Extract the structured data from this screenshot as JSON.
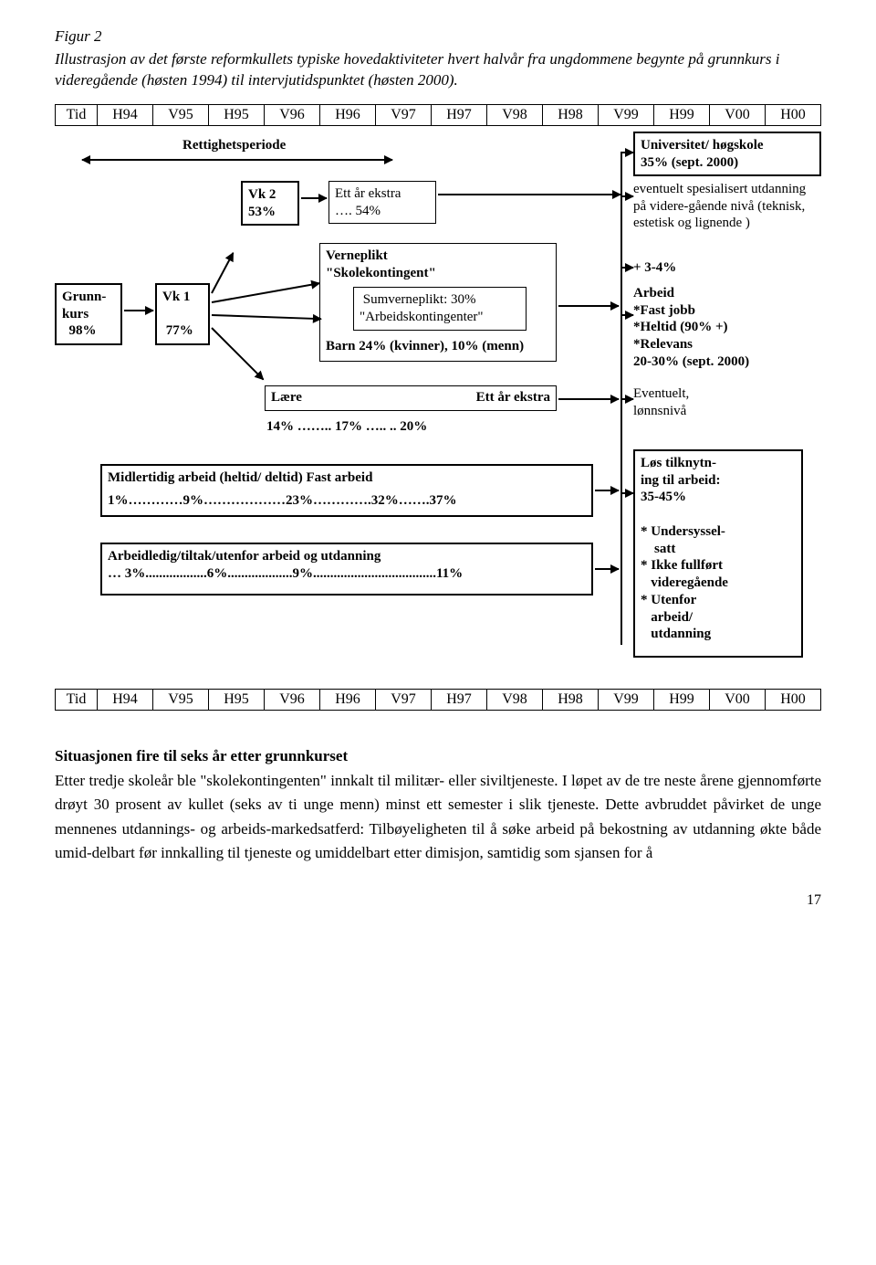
{
  "figure": {
    "title": "Figur 2",
    "description": "Illustrasjon av det første reformkullets typiske hovedaktiviteter hvert halvår fra ungdommene begynte på grunnkurs i videregående (høsten 1994) til intervjutidspunktet (høsten 2000)."
  },
  "timeline": {
    "row_label": "Tid",
    "cells": [
      "H94",
      "V95",
      "H95",
      "V96",
      "H96",
      "V97",
      "H97",
      "V98",
      "H98",
      "V99",
      "H99",
      "V00",
      "H00"
    ]
  },
  "diagram": {
    "rettighets": "Rettighetsperiode",
    "grunnkurs": "Grunn-\nkurs\n  98%",
    "vk1": "Vk 1\n\n 77%",
    "vk2": "Vk 2\n 53%",
    "ettaar": "Ett år ekstra\n…. 54%",
    "verneplikt_title": "Verneplikt\n\"Skolekontingent\"",
    "sumverne": " Sumverneplikt: 30%\n\"Arbeidskontingenter\"",
    "barn": "Barn     24% (kvinner), 10% (menn)",
    "laere_label": "Lære",
    "laere_ett": "Ett år ekstra",
    "laere_pct": "14% …….. 17% …..             .. 20%",
    "uni": "Universitet/ høgskole\n35% (sept. 2000)",
    "spesial": "eventuelt spesialisert utdanning på videre-gående nivå (teknisk, estetisk og lignende )",
    "plus34": "+ 3-4%",
    "arbeid": "Arbeid\n*Fast jobb\n*Heltid (90% +)\n*Relevans\n20-30% (sept. 2000)",
    "eventuelt": "Eventuelt,\nlønnsnivå",
    "midl_title": "Midlertidig arbeid (heltid/ deltid)                               Fast arbeid",
    "midl_pct": "1%…………9%………………23%………….32%…….37%",
    "ledig_title": "Arbeidledig/tiltak/utenfor arbeid og utdanning",
    "ledig_pct": "… 3%..................6%...................9%....................................11%",
    "los": "Løs tilknytn-\ning til arbeid:\n35-45%\n\n* Undersyssel-\n    satt\n* Ikke fullført\n   videregående\n* Utenfor\n   arbeid/\n   utdanning"
  },
  "section": {
    "heading": "Situasjonen fire til seks år etter grunnkurset",
    "paragraph": "Etter tredje skoleår ble \"skolekontingenten\" innkalt til militær- eller siviltjeneste. I løpet av de tre neste årene gjennomførte drøyt 30 prosent av kullet (seks av ti unge menn) minst ett semester i slik tjeneste. Dette avbruddet påvirket de unge mennenes utdannings- og arbeids-markedsatferd: Tilbøyeligheten til å søke arbeid på bekostning av utdanning økte både umid-delbart før innkalling til tjeneste og umiddelbart etter dimisjon, samtidig som sjansen for å"
  },
  "page_number": "17",
  "style": {
    "page_bg": "#ffffff",
    "border_color": "#000000",
    "font_family": "Times New Roman"
  }
}
